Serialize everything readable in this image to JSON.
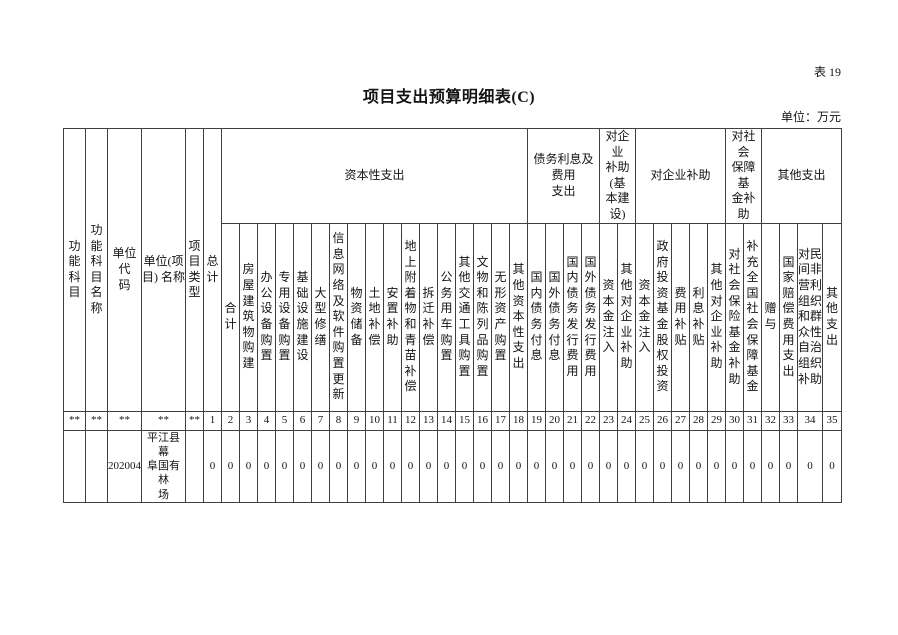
{
  "page": {
    "table_tag": "表 19",
    "title": "项目支出预算明细表(C)",
    "unit_note": "单位：万元"
  },
  "table": {
    "fixed_headers": [
      "功能科目",
      "功能科目名称",
      "单位代\n码",
      "单位(项\n目) 名称",
      "项目类型",
      "总计"
    ],
    "groups": [
      {
        "label": "资本性支出",
        "span": 17
      },
      {
        "label": "债务利息及费用\n支出",
        "span": 4
      },
      {
        "label": "对企业\n补助(基\n本建设)",
        "span": 2
      },
      {
        "label": "对企业补助",
        "span": 5
      },
      {
        "label": "对社会\n保障基\n金补助",
        "span": 2
      },
      {
        "label": "其他支出",
        "span": 4
      }
    ],
    "columns": [
      "合计",
      "房屋建筑物购建",
      "办公设备购置",
      "专用设备购置",
      "基础设施建设",
      "大型修缮",
      "信息网络及软件购置更新",
      "物资储备",
      "土地补偿",
      "安置补助",
      "地上附着物和青苗补偿",
      "拆迁补偿",
      "公务用车购置",
      "其他交通工具购置",
      "文物和陈列品购置",
      "无形资产购置",
      "其他资本性支出",
      "国内债务付息",
      "国外债务付息",
      "国内债务发行费用",
      "国外债务发行费用",
      "资本金注入",
      "其他对企业补助",
      "资本金注入",
      "政府投资基金股权投资",
      "费用补贴",
      "利息补贴",
      "其他对企业补助",
      "对社会保险基金补助",
      "补充全国社会保障基金",
      "赠与",
      "国家赔偿费用支出",
      "对民间非营利组织和群众性自治组织补助",
      "其他支出"
    ],
    "code_row": [
      "**",
      "**",
      "**",
      "**",
      "**",
      "1",
      "2",
      "3",
      "4",
      "5",
      "6",
      "7",
      "8",
      "9",
      "10",
      "11",
      "12",
      "13",
      "14",
      "15",
      "16",
      "17",
      "18",
      "19",
      "20",
      "21",
      "22",
      "23",
      "24",
      "25",
      "26",
      "27",
      "28",
      "29",
      "30",
      "31",
      "32",
      "33",
      "34",
      "35"
    ],
    "data_row": [
      "",
      "",
      "202004",
      "平江县幕\n阜国有林\n场",
      "",
      "0",
      "0",
      "0",
      "0",
      "0",
      "0",
      "0",
      "0",
      "0",
      "0",
      "0",
      "0",
      "0",
      "0",
      "0",
      "0",
      "0",
      "0",
      "0",
      "0",
      "0",
      "0",
      "0",
      "0",
      "0",
      "0",
      "0",
      "0",
      "0",
      "0",
      "0",
      "0",
      "0",
      "0",
      "0"
    ]
  }
}
